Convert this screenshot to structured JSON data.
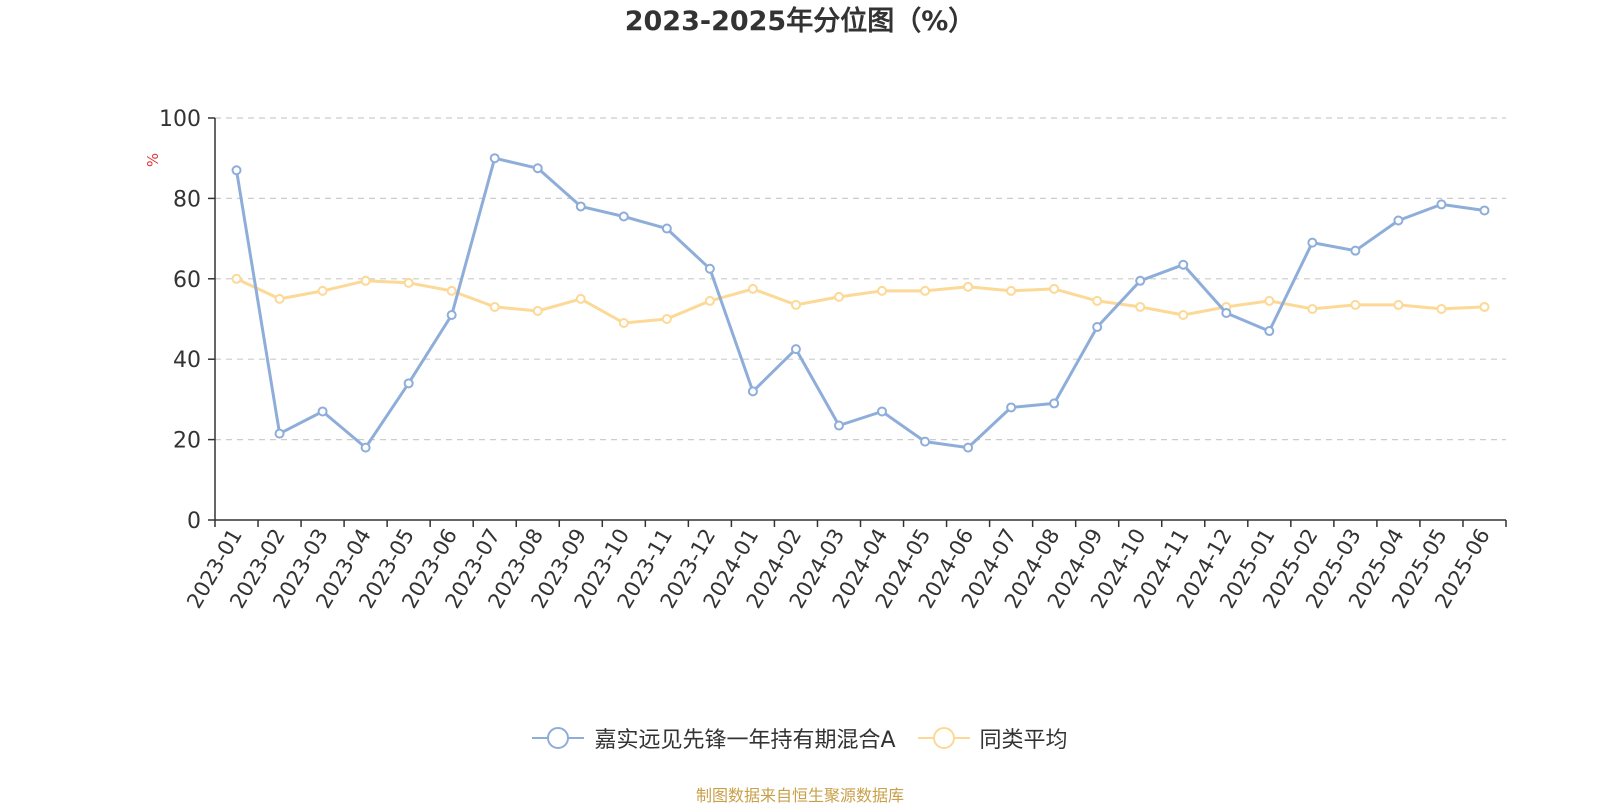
{
  "chart_data": {
    "type": "line",
    "title": "2023-2025年分位图（%）",
    "ylabel": "%",
    "xlabel": "",
    "ylim": [
      0,
      100
    ],
    "yticks": [
      0,
      20,
      40,
      60,
      80,
      100
    ],
    "grid": true,
    "legend_position": "bottom",
    "categories": [
      "2023-01",
      "2023-02",
      "2023-03",
      "2023-04",
      "2023-05",
      "2023-06",
      "2023-07",
      "2023-08",
      "2023-09",
      "2023-10",
      "2023-11",
      "2023-12",
      "2024-01",
      "2024-02",
      "2024-03",
      "2024-04",
      "2024-05",
      "2024-06",
      "2024-07",
      "2024-08",
      "2024-09",
      "2024-10",
      "2024-11",
      "2024-12",
      "2025-01",
      "2025-02",
      "2025-03",
      "2025-04",
      "2025-05",
      "2025-06"
    ],
    "series": [
      {
        "name": "嘉实远见先锋一年持有期混合A",
        "color": "#8eaed9",
        "values": [
          87,
          21.5,
          27,
          18,
          34,
          51,
          90,
          87.5,
          78,
          75.5,
          72.5,
          62.5,
          32,
          42.5,
          23.5,
          27,
          19.5,
          18,
          28,
          29,
          48,
          59.5,
          63.5,
          51.5,
          47,
          69,
          67,
          74.5,
          78.5,
          77
        ]
      },
      {
        "name": "同类平均",
        "color": "#fcd996",
        "values": [
          60,
          55,
          57,
          59.5,
          59,
          57,
          53,
          52,
          55,
          49,
          50,
          54.5,
          57.5,
          53.5,
          55.5,
          57,
          57,
          58,
          57,
          57.5,
          54.5,
          53,
          51,
          53,
          54.5,
          52.5,
          53.5,
          53.5,
          52.5,
          53
        ]
      }
    ]
  },
  "source_note": "制图数据来自恒生聚源数据库"
}
